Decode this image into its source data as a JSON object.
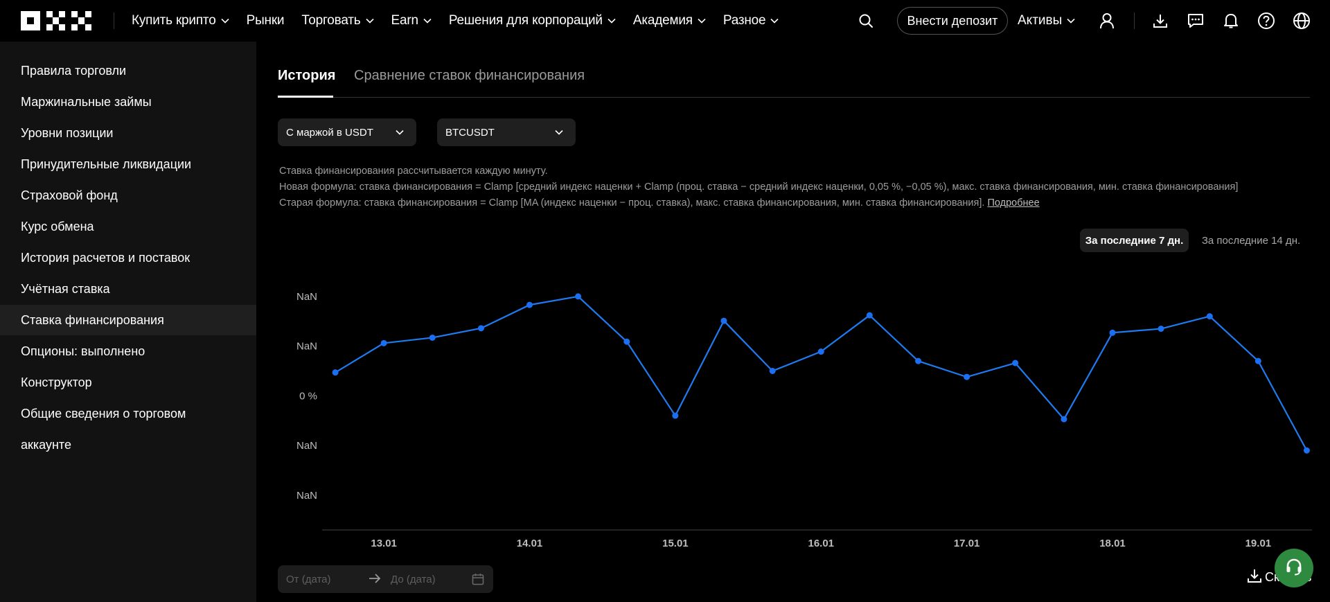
{
  "topnav": {
    "logo_text": "OKX",
    "menu": [
      {
        "label": "Купить крипто",
        "has_dropdown": true
      },
      {
        "label": "Рынки",
        "has_dropdown": false
      },
      {
        "label": "Торговать",
        "has_dropdown": true
      },
      {
        "label": "Earn",
        "has_dropdown": true
      },
      {
        "label": "Решения для корпораций",
        "has_dropdown": true
      },
      {
        "label": "Академия",
        "has_dropdown": true
      },
      {
        "label": "Разное",
        "has_dropdown": true
      }
    ],
    "deposit_label": "Внести депозит",
    "assets_label": "Активы",
    "icons": [
      "search-icon",
      "user-icon",
      "download-icon",
      "chat-icon",
      "bell-icon",
      "help-icon",
      "globe-icon"
    ]
  },
  "sidebar": {
    "items": [
      {
        "label": "Правила торговли",
        "active": false
      },
      {
        "label": "Маржинальные займы",
        "active": false
      },
      {
        "label": "Уровни позиции",
        "active": false
      },
      {
        "label": "Принудительные ликвидации",
        "active": false
      },
      {
        "label": "Страховой фонд",
        "active": false
      },
      {
        "label": "Курс обмена",
        "active": false
      },
      {
        "label": "История расчетов и поставок",
        "active": false
      },
      {
        "label": "Учётная ставка",
        "active": false
      },
      {
        "label": "Ставка финансирования",
        "active": true
      },
      {
        "label": "Опционы: выполнено",
        "active": false
      },
      {
        "label": "Конструктор",
        "active": false
      },
      {
        "label": "Общие сведения о торговом",
        "active": false
      },
      {
        "label": "аккаунте",
        "active": false
      }
    ]
  },
  "tabs": [
    {
      "label": "История",
      "active": true
    },
    {
      "label": "Сравнение ставок финансирования",
      "active": false
    }
  ],
  "filters": {
    "margin_select": "С маржой в USDT",
    "pair_select": "BTCUSDT"
  },
  "info": {
    "line1": "Ставка финансирования рассчитывается каждую минуту.",
    "line2": "Новая формула: ставка финансирования = Clamp [средний индекс наценки + Clamp (проц. ставка − средний индекс наценки, 0,05 %, −0,05 %), макс. ставка финансирования, мин. ставка финансирования]",
    "line3": "Старая формула: ставка финансирования = Clamp [MA (индекс наценки − проц. ставка), макс. ставка финансирования, мин. ставка финансирования].",
    "more_link": "Подробнее"
  },
  "range_buttons": [
    {
      "label": "За последние 7 дн.",
      "active": true
    },
    {
      "label": "За последние 14 дн.",
      "active": false
    }
  ],
  "chart_data": {
    "type": "line",
    "title": "",
    "xlabel": "",
    "ylabel": "",
    "y_tick_labels": [
      "NaN",
      "NaN",
      "0 %",
      "NaN",
      "NaN"
    ],
    "y_ticks": [
      2,
      1,
      0,
      -1,
      -2
    ],
    "ylim": [
      -2.7,
      2.25
    ],
    "xlim": [
      12.6,
      19.35
    ],
    "x_tick_labels": [
      "13.01",
      "14.01",
      "15.01",
      "16.01",
      "17.01",
      "18.01",
      "19.01"
    ],
    "x_ticks": [
      13,
      14,
      15,
      16,
      17,
      18,
      19
    ],
    "line_color": "#1e7bf0",
    "point_color": "#1a6ff2",
    "grid": false,
    "series": [
      {
        "name": "",
        "x": [
          12.667,
          13.0,
          13.333,
          13.667,
          14.0,
          14.333,
          14.667,
          15.0,
          15.333,
          15.667,
          16.0,
          16.333,
          16.667,
          17.0,
          17.333,
          17.667,
          18.0,
          18.333,
          18.667,
          19.0,
          19.333
        ],
        "values": [
          0.47,
          1.06,
          1.17,
          1.36,
          1.83,
          2.0,
          1.09,
          -0.4,
          1.51,
          0.5,
          0.89,
          1.62,
          0.7,
          0.38,
          0.66,
          -0.47,
          1.27,
          1.35,
          1.6,
          0.7,
          -1.1
        ]
      }
    ]
  },
  "daterange": {
    "from_placeholder": "От (дата)",
    "to_placeholder": "До (дата)"
  },
  "download_label": "Скачать"
}
